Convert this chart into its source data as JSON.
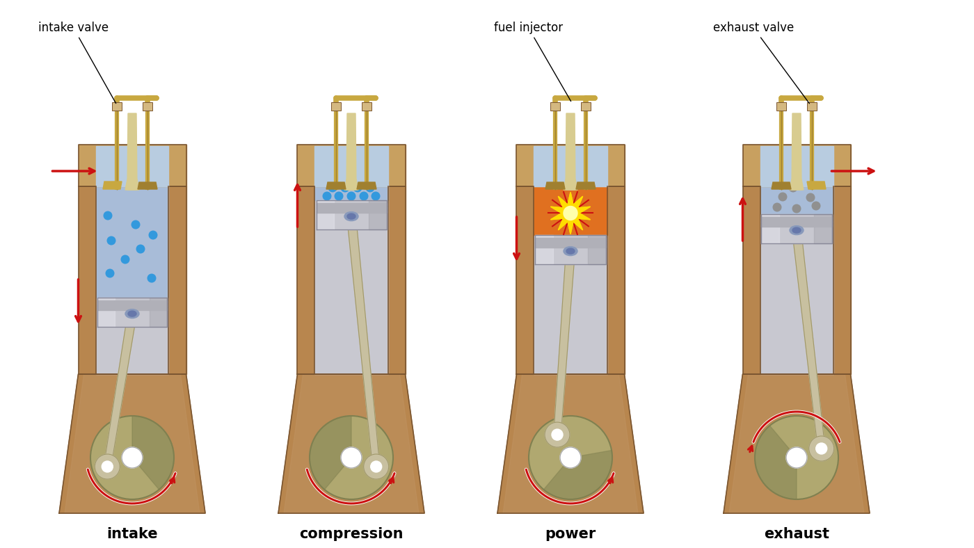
{
  "bg_color": "#ffffff",
  "body_color": "#b8864e",
  "body_dark": "#7a5530",
  "body_inner": "#c49a6c",
  "cyl_blue": "#a8bcd8",
  "cyl_blue_dark": "#8098b8",
  "piston_color": "#c8c8d0",
  "piston_ring_color": "#b0b0b8",
  "piston_dark": "#888898",
  "rod_color": "#c8c0a0",
  "rod_dark": "#a0986a",
  "crank_color": "#b0a870",
  "crank_dark": "#808050",
  "head_color": "#c8a060",
  "head_inner": "#d4b880",
  "dome_color": "#b8cce0",
  "valve_color": "#c8a840",
  "valve_dark": "#a08030",
  "pipe_color": "#c8a840",
  "injector_color": "#d8cc90",
  "intake_dot": "#3399dd",
  "exhaust_dot": "#909090",
  "red_arrow": "#cc1111",
  "explosion_orange": "#e07020",
  "explosion_yellow": "#ffdd00",
  "white": "#ffffff",
  "stages": [
    "intake",
    "compression",
    "power",
    "exhaust"
  ],
  "label_fontsize": 15,
  "ann_fontsize": 12
}
